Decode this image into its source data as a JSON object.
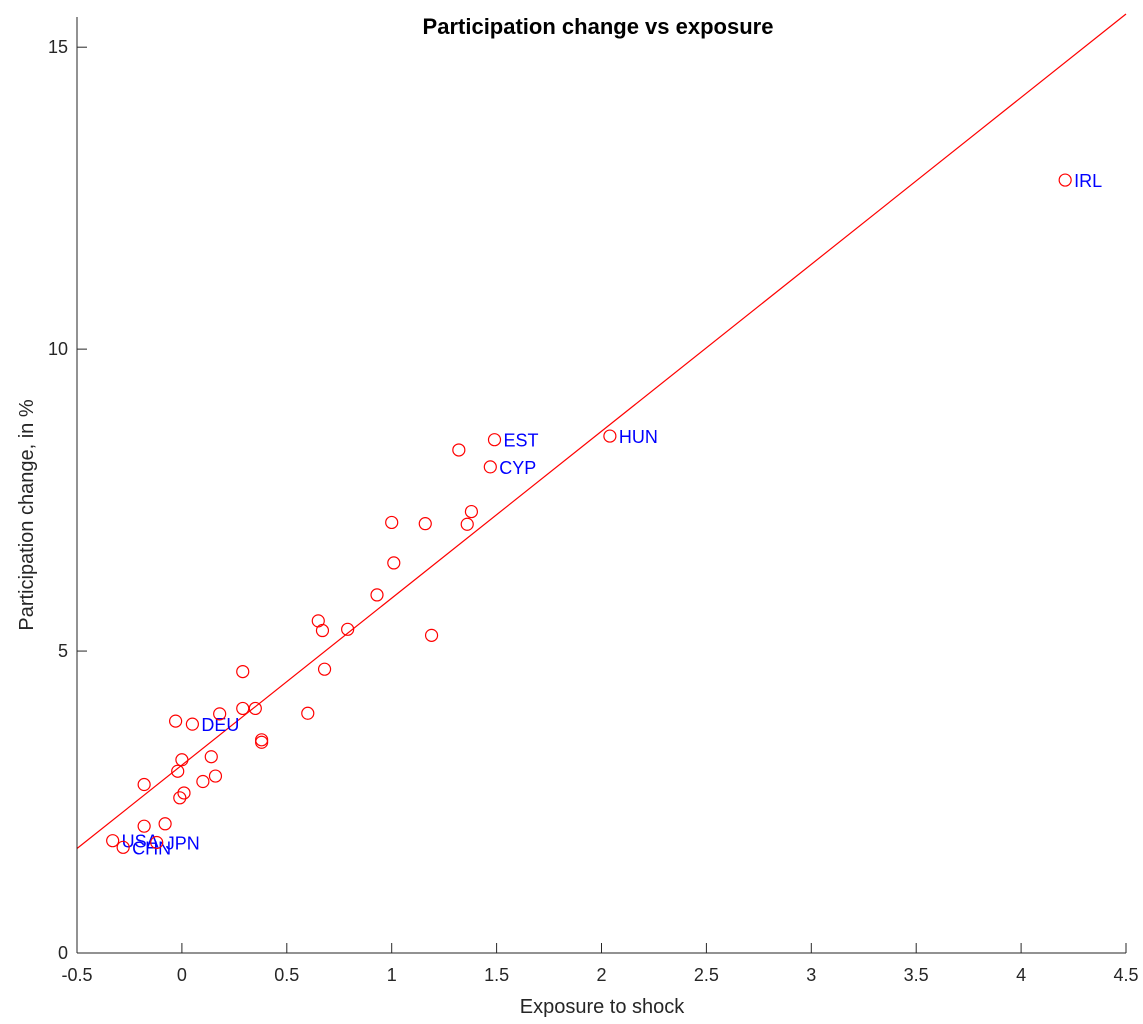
{
  "chart_data": {
    "type": "scatter",
    "title": "Participation change vs exposure",
    "xlabel": "Exposure to shock",
    "ylabel": "Participation change, in %",
    "xlim": [
      -0.5,
      4.5
    ],
    "ylim": [
      0,
      15.5
    ],
    "xticks": [
      -0.5,
      0,
      0.5,
      1,
      1.5,
      2,
      2.5,
      3,
      3.5,
      4,
      4.5
    ],
    "xtick_labels": [
      "-0.5",
      "0",
      "0.5",
      "1",
      "1.5",
      "2",
      "2.5",
      "3",
      "3.5",
      "4",
      "4.5"
    ],
    "yticks": [
      0,
      5,
      10,
      15
    ],
    "ytick_labels": [
      "0",
      "5",
      "10",
      "15"
    ],
    "grid": false,
    "marker_color": "#ff0000",
    "label_color": "#0000ff",
    "fit_line": {
      "x": [
        -0.5,
        4.5
      ],
      "y": [
        1.73,
        15.55
      ],
      "color": "#ff0000"
    },
    "points": [
      {
        "x": 4.21,
        "y": 12.8,
        "label": "IRL"
      },
      {
        "x": 2.04,
        "y": 8.56,
        "label": "HUN"
      },
      {
        "x": 1.49,
        "y": 8.5,
        "label": "EST"
      },
      {
        "x": 1.47,
        "y": 8.05,
        "label": "CYP"
      },
      {
        "x": 0.05,
        "y": 3.79,
        "label": "DEU"
      },
      {
        "x": -0.33,
        "y": 1.86,
        "label": "USA"
      },
      {
        "x": -0.28,
        "y": 1.75,
        "label": "CHN"
      },
      {
        "x": -0.12,
        "y": 1.83,
        "label": "JPN"
      },
      {
        "x": 1.32,
        "y": 8.33,
        "label": ""
      },
      {
        "x": 1.38,
        "y": 7.31,
        "label": ""
      },
      {
        "x": 1.36,
        "y": 7.1,
        "label": ""
      },
      {
        "x": 1.16,
        "y": 7.11,
        "label": ""
      },
      {
        "x": 1.0,
        "y": 7.13,
        "label": ""
      },
      {
        "x": 1.01,
        "y": 6.46,
        "label": ""
      },
      {
        "x": 0.93,
        "y": 5.93,
        "label": ""
      },
      {
        "x": 0.65,
        "y": 5.5,
        "label": ""
      },
      {
        "x": 0.67,
        "y": 5.34,
        "label": ""
      },
      {
        "x": 0.79,
        "y": 5.36,
        "label": ""
      },
      {
        "x": 1.19,
        "y": 5.26,
        "label": ""
      },
      {
        "x": 0.68,
        "y": 4.7,
        "label": ""
      },
      {
        "x": 0.29,
        "y": 4.66,
        "label": ""
      },
      {
        "x": 0.29,
        "y": 4.05,
        "label": ""
      },
      {
        "x": 0.35,
        "y": 4.05,
        "label": ""
      },
      {
        "x": 0.6,
        "y": 3.97,
        "label": ""
      },
      {
        "x": 0.18,
        "y": 3.96,
        "label": ""
      },
      {
        "x": -0.03,
        "y": 3.84,
        "label": ""
      },
      {
        "x": 0.38,
        "y": 3.53,
        "label": ""
      },
      {
        "x": 0.38,
        "y": 3.49,
        "label": ""
      },
      {
        "x": 0.0,
        "y": 3.2,
        "label": ""
      },
      {
        "x": 0.14,
        "y": 3.25,
        "label": ""
      },
      {
        "x": -0.02,
        "y": 3.01,
        "label": ""
      },
      {
        "x": 0.16,
        "y": 2.93,
        "label": ""
      },
      {
        "x": 0.1,
        "y": 2.84,
        "label": ""
      },
      {
        "x": -0.18,
        "y": 2.79,
        "label": ""
      },
      {
        "x": 0.01,
        "y": 2.65,
        "label": ""
      },
      {
        "x": -0.01,
        "y": 2.57,
        "label": ""
      },
      {
        "x": -0.08,
        "y": 2.14,
        "label": ""
      },
      {
        "x": -0.18,
        "y": 2.1,
        "label": ""
      }
    ]
  }
}
